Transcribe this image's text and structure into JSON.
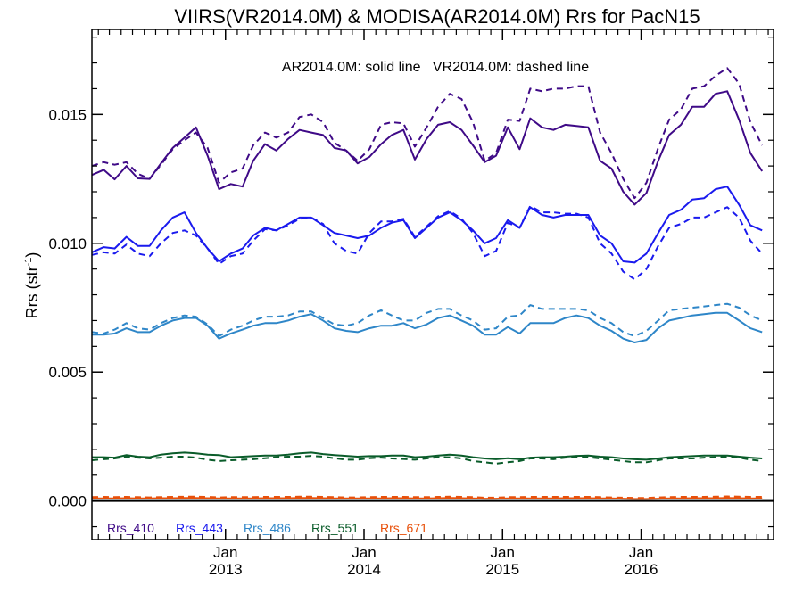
{
  "chart_data": {
    "type": "line",
    "title": "VIIRS(VR2014.0M) & MODISA(AR2014.0M)  Rrs for PacN15",
    "annotation": "AR2014.0M: solid line   VR2014.0M: dashed line",
    "ylabel_main": "Rrs (str",
    "ylabel_sup": "-1",
    "ylabel_close": ")",
    "xlim": [
      "2012-01-15",
      "2016-12-15"
    ],
    "ylim": [
      -0.0015,
      0.0183
    ],
    "grid": false,
    "x_ticks": [
      {
        "month": "Jan",
        "year": "2013",
        "date": "2013-01-01"
      },
      {
        "month": "Jan",
        "year": "2014",
        "date": "2014-01-01"
      },
      {
        "month": "Jan",
        "year": "2015",
        "date": "2015-01-01"
      },
      {
        "month": "Jan",
        "year": "2016",
        "date": "2016-01-01"
      }
    ],
    "y_ticks": [
      "0.000",
      "0.005",
      "0.010",
      "0.015"
    ],
    "y_tick_values": [
      0.0,
      0.005,
      0.01,
      0.015
    ],
    "legend_placement": "bottom-left",
    "series": [
      {
        "name": "Rrs_410",
        "color": "#3f0a87",
        "solid": [
          0.01265,
          0.01285,
          0.01248,
          0.013,
          0.01252,
          0.0125,
          0.0131,
          0.0137,
          0.0141,
          0.0145,
          0.0134,
          0.0121,
          0.0123,
          0.0122,
          0.0132,
          0.01385,
          0.0136,
          0.01405,
          0.0144,
          0.0143,
          0.0142,
          0.0137,
          0.0136,
          0.0131,
          0.01335,
          0.01385,
          0.0142,
          0.0144,
          0.01325,
          0.01405,
          0.0146,
          0.0147,
          0.0144,
          0.0138,
          0.01315,
          0.0134,
          0.0145,
          0.01365,
          0.01485,
          0.0145,
          0.0144,
          0.0146,
          0.01455,
          0.0145,
          0.0132,
          0.0129,
          0.012,
          0.0115,
          0.01195,
          0.0132,
          0.0142,
          0.0146,
          0.0153,
          0.0153,
          0.0158,
          0.0159,
          0.0148,
          0.0135,
          0.0128
        ],
        "dashed": [
          0.013,
          0.01315,
          0.01305,
          0.01315,
          0.0127,
          0.0125,
          0.01305,
          0.01365,
          0.014,
          0.0143,
          0.0137,
          0.01235,
          0.01275,
          0.0129,
          0.0138,
          0.0143,
          0.0141,
          0.0143,
          0.0149,
          0.015,
          0.0147,
          0.0139,
          0.0136,
          0.0132,
          0.01365,
          0.0146,
          0.0147,
          0.01465,
          0.01375,
          0.0145,
          0.0153,
          0.0158,
          0.0156,
          0.0147,
          0.0132,
          0.0135,
          0.0148,
          0.01475,
          0.016,
          0.0159,
          0.016,
          0.016,
          0.0161,
          0.0161,
          0.0143,
          0.0135,
          0.0125,
          0.01175,
          0.01235,
          0.0137,
          0.0148,
          0.0152,
          0.016,
          0.0161,
          0.0165,
          0.0168,
          0.0162,
          0.0147,
          0.0138
        ]
      },
      {
        "name": "Rrs_443",
        "color": "#1a1aee",
        "solid": [
          0.00965,
          0.00985,
          0.0098,
          0.01025,
          0.0099,
          0.0099,
          0.0105,
          0.011,
          0.0112,
          0.0104,
          0.0098,
          0.0093,
          0.0096,
          0.0098,
          0.0103,
          0.0106,
          0.0105,
          0.01075,
          0.011,
          0.011,
          0.0107,
          0.0104,
          0.0103,
          0.0102,
          0.0103,
          0.0106,
          0.0108,
          0.0109,
          0.0102,
          0.0106,
          0.011,
          0.0112,
          0.0109,
          0.0105,
          0.01,
          0.0102,
          0.0109,
          0.0106,
          0.0114,
          0.0111,
          0.011,
          0.0111,
          0.0111,
          0.0111,
          0.0103,
          0.01,
          0.0093,
          0.00925,
          0.0096,
          0.0104,
          0.0111,
          0.0113,
          0.0117,
          0.01175,
          0.0121,
          0.0122,
          0.0115,
          0.0107,
          0.0105
        ],
        "dashed": [
          0.00955,
          0.00965,
          0.0096,
          0.00995,
          0.0096,
          0.0095,
          0.01,
          0.0104,
          0.0105,
          0.0103,
          0.0098,
          0.0092,
          0.0095,
          0.0096,
          0.0101,
          0.01055,
          0.0105,
          0.0107,
          0.01095,
          0.011,
          0.01075,
          0.01,
          0.0097,
          0.0096,
          0.0104,
          0.01085,
          0.01085,
          0.01095,
          0.01025,
          0.01065,
          0.01105,
          0.01125,
          0.01095,
          0.0104,
          0.0095,
          0.0097,
          0.0108,
          0.0106,
          0.01145,
          0.0112,
          0.0112,
          0.01115,
          0.01115,
          0.011,
          0.01,
          0.0096,
          0.0089,
          0.0086,
          0.009,
          0.0099,
          0.0106,
          0.01075,
          0.011,
          0.011,
          0.0112,
          0.0114,
          0.011,
          0.0101,
          0.0096
        ]
      },
      {
        "name": "Rrs_486",
        "color": "#2e86c8",
        "solid": [
          0.00645,
          0.00645,
          0.0065,
          0.0067,
          0.00655,
          0.00655,
          0.0068,
          0.007,
          0.0071,
          0.0071,
          0.0068,
          0.0063,
          0.0065,
          0.00665,
          0.0068,
          0.0069,
          0.0069,
          0.007,
          0.00715,
          0.00725,
          0.007,
          0.0067,
          0.0066,
          0.00655,
          0.0067,
          0.0068,
          0.0068,
          0.0069,
          0.0067,
          0.00685,
          0.0071,
          0.0072,
          0.007,
          0.0068,
          0.00645,
          0.00645,
          0.00675,
          0.0065,
          0.0069,
          0.0069,
          0.0069,
          0.0071,
          0.0072,
          0.0071,
          0.0068,
          0.0066,
          0.0063,
          0.00615,
          0.00625,
          0.0067,
          0.007,
          0.0071,
          0.0072,
          0.00725,
          0.0073,
          0.0073,
          0.007,
          0.0067,
          0.00655
        ],
        "dashed": [
          0.00655,
          0.0065,
          0.00665,
          0.0069,
          0.0067,
          0.00665,
          0.0069,
          0.0071,
          0.0072,
          0.00715,
          0.00685,
          0.0064,
          0.00665,
          0.0068,
          0.007,
          0.00715,
          0.00715,
          0.0072,
          0.00735,
          0.00735,
          0.0071,
          0.00685,
          0.0068,
          0.0069,
          0.0072,
          0.0074,
          0.0072,
          0.007,
          0.007,
          0.0073,
          0.00745,
          0.00745,
          0.0072,
          0.007,
          0.00665,
          0.0067,
          0.00715,
          0.0072,
          0.0076,
          0.00745,
          0.00745,
          0.00745,
          0.00745,
          0.0074,
          0.0071,
          0.0069,
          0.00655,
          0.0064,
          0.0066,
          0.007,
          0.0074,
          0.00745,
          0.0075,
          0.00755,
          0.0076,
          0.00765,
          0.0075,
          0.0072,
          0.007
        ]
      },
      {
        "name": "Rrs_551",
        "color": "#0a5c2a",
        "solid": [
          0.0017,
          0.0017,
          0.00168,
          0.00178,
          0.00172,
          0.0017,
          0.0018,
          0.00185,
          0.00188,
          0.00185,
          0.0018,
          0.00178,
          0.0017,
          0.00172,
          0.00174,
          0.00176,
          0.00176,
          0.0018,
          0.00185,
          0.00188,
          0.00182,
          0.00178,
          0.00175,
          0.00172,
          0.00174,
          0.00174,
          0.00176,
          0.00176,
          0.0017,
          0.00172,
          0.00176,
          0.0018,
          0.00176,
          0.0017,
          0.00165,
          0.00162,
          0.00166,
          0.00162,
          0.00168,
          0.0017,
          0.0017,
          0.00172,
          0.00175,
          0.00176,
          0.00172,
          0.0017,
          0.00165,
          0.00162,
          0.0016,
          0.00165,
          0.0017,
          0.00172,
          0.00174,
          0.00176,
          0.00176,
          0.00176,
          0.00172,
          0.00168,
          0.00165
        ],
        "dashed": [
          0.00158,
          0.00162,
          0.00165,
          0.00172,
          0.00168,
          0.00165,
          0.00168,
          0.00172,
          0.00172,
          0.00168,
          0.0016,
          0.00155,
          0.00158,
          0.0016,
          0.00162,
          0.00166,
          0.0017,
          0.00172,
          0.00172,
          0.00175,
          0.00172,
          0.00166,
          0.0016,
          0.0016,
          0.00166,
          0.00168,
          0.00165,
          0.00163,
          0.0016,
          0.00165,
          0.0017,
          0.0017,
          0.00165,
          0.00155,
          0.0015,
          0.00145,
          0.0015,
          0.00155,
          0.00165,
          0.00165,
          0.00162,
          0.00168,
          0.0017,
          0.0017,
          0.00165,
          0.0016,
          0.00155,
          0.0015,
          0.0015,
          0.00158,
          0.00165,
          0.00165,
          0.00165,
          0.00168,
          0.0017,
          0.00172,
          0.00168,
          0.0016,
          0.00155
        ]
      },
      {
        "name": "Rrs_671",
        "color": "#e8500a",
        "solid": [
          0.0001,
          0.0001,
          0.0001,
          0.00011,
          0.0001,
          0.0001,
          0.00011,
          0.00011,
          0.00012,
          0.00012,
          0.00011,
          0.0001,
          0.0001,
          0.0001,
          0.0001,
          0.00011,
          0.00011,
          0.00011,
          0.00012,
          0.00012,
          0.00011,
          0.0001,
          0.0001,
          0.0001,
          0.0001,
          0.0001,
          0.00011,
          0.00011,
          0.0001,
          0.0001,
          0.00011,
          0.00012,
          0.00011,
          0.0001,
          9e-05,
          9e-05,
          0.0001,
          0.0001,
          0.0001,
          0.0001,
          0.0001,
          0.00011,
          0.00011,
          0.00011,
          0.0001,
          0.0001,
          9e-05,
          8e-05,
          8e-05,
          9e-05,
          0.0001,
          0.0001,
          0.00011,
          0.00011,
          0.00011,
          0.00012,
          0.00011,
          0.0001,
          0.0001
        ],
        "dashed": [
          0.00015,
          0.00016,
          0.00015,
          0.00016,
          0.00015,
          0.00014,
          0.00015,
          0.00016,
          0.00017,
          0.00017,
          0.00016,
          0.00014,
          0.00015,
          0.00015,
          0.00015,
          0.00016,
          0.00016,
          0.00016,
          0.00017,
          0.00017,
          0.00016,
          0.00015,
          0.00014,
          0.00014,
          0.00015,
          0.00016,
          0.00016,
          0.00016,
          0.00015,
          0.00015,
          0.00016,
          0.00017,
          0.00016,
          0.00015,
          0.00013,
          0.00013,
          0.00015,
          0.00015,
          0.00016,
          0.00016,
          0.00016,
          0.00016,
          0.00016,
          0.00016,
          0.00015,
          0.00014,
          0.00013,
          0.00012,
          0.00012,
          0.00014,
          0.00015,
          0.00016,
          0.00016,
          0.00016,
          0.00017,
          0.00018,
          0.00017,
          0.00016,
          0.00016
        ]
      }
    ]
  }
}
